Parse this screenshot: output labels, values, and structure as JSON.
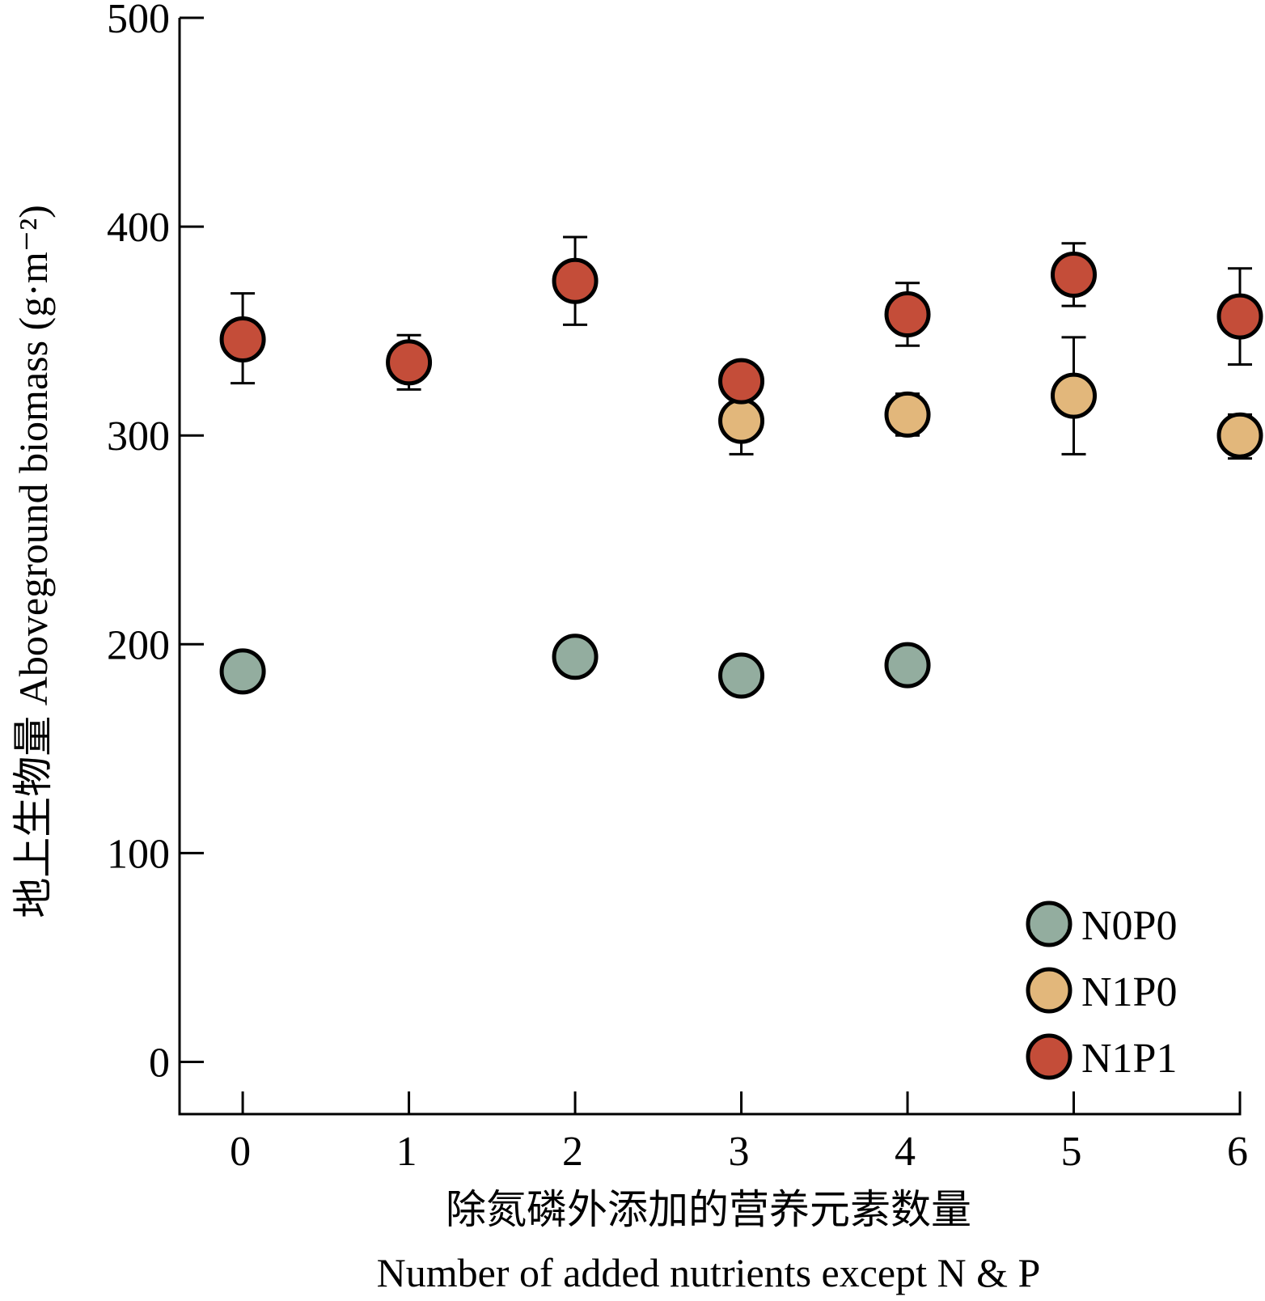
{
  "chart_data": {
    "type": "scatter",
    "xlabel_cn": "除氮磷外添加的营养元素数量",
    "xlabel_en": "Number of added nutrients except N & P",
    "ylabel": "地上生物量 Aboveground biomass (g·m⁻²)",
    "xlim": [
      -0.38,
      6.0
    ],
    "ylim": [
      -25,
      500
    ],
    "x_ticks": [
      0,
      1,
      2,
      3,
      4,
      5,
      6
    ],
    "y_ticks": [
      0,
      100,
      200,
      300,
      400,
      500
    ],
    "legend_position": "bottom-right",
    "grid": false,
    "series": [
      {
        "name": "N0P0",
        "color": "#93ad9f",
        "points": [
          {
            "x": 0,
            "y": 187
          },
          {
            "x": 2,
            "y": 194
          },
          {
            "x": 3,
            "y": 185
          },
          {
            "x": 4,
            "y": 190
          }
        ]
      },
      {
        "name": "N1P0",
        "color": "#e2b77b",
        "points": [
          {
            "x": 3,
            "y": 307,
            "err_lo": 291,
            "err_hi": 307
          },
          {
            "x": 4,
            "y": 310,
            "err_lo": 300,
            "err_hi": 320
          },
          {
            "x": 5,
            "y": 319,
            "err_lo": 291,
            "err_hi": 347
          },
          {
            "x": 6,
            "y": 300,
            "err_lo": 289,
            "err_hi": 310
          }
        ]
      },
      {
        "name": "N1P1",
        "color": "#c44d39",
        "points": [
          {
            "x": 0,
            "y": 346,
            "err_lo": 325,
            "err_hi": 368
          },
          {
            "x": 1,
            "y": 335,
            "err_lo": 322,
            "err_hi": 348
          },
          {
            "x": 2,
            "y": 374,
            "err_lo": 353,
            "err_hi": 395
          },
          {
            "x": 3,
            "y": 326,
            "err_lo": 326,
            "err_hi": 326
          },
          {
            "x": 4,
            "y": 358,
            "err_lo": 343,
            "err_hi": 373
          },
          {
            "x": 5,
            "y": 377,
            "err_lo": 362,
            "err_hi": 392
          },
          {
            "x": 6,
            "y": 357,
            "err_lo": 334,
            "err_hi": 380
          }
        ]
      }
    ]
  }
}
